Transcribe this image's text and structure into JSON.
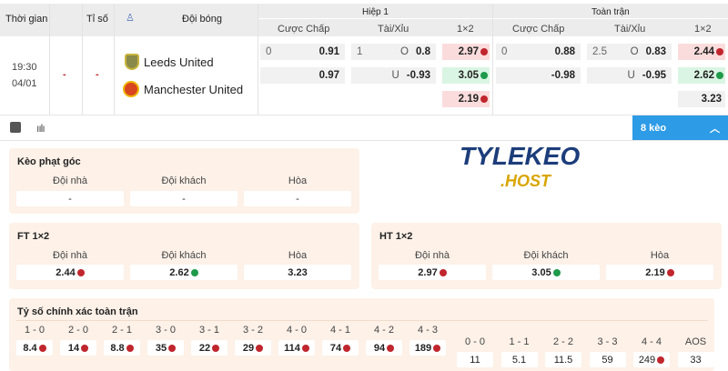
{
  "header": {
    "time": "Thời gian",
    "score": "Tỉ số",
    "teams": "Đội bóng",
    "half1": "Hiệp 1",
    "full": "Toàn trận",
    "handicap": "Cược Chấp",
    "ou": "Tài/Xỉu",
    "x12": "1×2"
  },
  "match": {
    "time": "19:30",
    "date": "04/01",
    "score1": "-",
    "score2": "-",
    "home": "Leeds United",
    "away": "Manchester United"
  },
  "h1": {
    "hdp_line": "0",
    "hdp_home": "0.91",
    "hdp_away": "0.97",
    "ou_line": "1",
    "ou_o": "O",
    "ou_over": "0.8",
    "ou_u": "U",
    "ou_under": "-0.93",
    "x_home": "2.97",
    "x_away": "3.05",
    "x_draw": "2.19"
  },
  "ft": {
    "hdp_line": "0",
    "hdp_home": "0.88",
    "hdp_away": "-0.98",
    "ou_line": "2.5",
    "ou_o": "O",
    "ou_over": "0.83",
    "ou_u": "U",
    "ou_under": "-0.95",
    "x_home": "2.44",
    "x_away": "2.62",
    "x_draw": "3.23"
  },
  "more_button": "8 kèo",
  "watermark": "TYLEKEO .HOST",
  "corner": {
    "title": "Kèo phạt góc",
    "labels": [
      "Đội nhà",
      "Đội khách",
      "Hòa"
    ],
    "values": [
      "-",
      "-",
      "-"
    ]
  },
  "ft12": {
    "title": "FT 1×2",
    "labels": [
      "Đội nhà",
      "Đội khách",
      "Hòa"
    ],
    "values": [
      "2.44",
      "2.62",
      "3.23"
    ]
  },
  "ht12": {
    "title": "HT 1×2",
    "labels": [
      "Đội nhà",
      "Đội khách",
      "Hòa"
    ],
    "values": [
      "2.97",
      "3.05",
      "2.19"
    ]
  },
  "correct": {
    "title": "Tỷ số chính xác toàn trận",
    "home": [
      {
        "s": "1 - 0",
        "v": "8.4"
      },
      {
        "s": "2 - 0",
        "v": "14"
      },
      {
        "s": "2 - 1",
        "v": "8.8"
      },
      {
        "s": "3 - 0",
        "v": "35"
      },
      {
        "s": "3 - 1",
        "v": "22"
      },
      {
        "s": "3 - 2",
        "v": "29"
      },
      {
        "s": "4 - 0",
        "v": "114"
      },
      {
        "s": "4 - 1",
        "v": "74"
      },
      {
        "s": "4 - 2",
        "v": "94"
      },
      {
        "s": "4 - 3",
        "v": "189"
      }
    ],
    "draw": [
      {
        "s": "0 - 0",
        "v": "11"
      },
      {
        "s": "1 - 1",
        "v": "5.1"
      },
      {
        "s": "2 - 2",
        "v": "11.5"
      },
      {
        "s": "3 - 3",
        "v": "59"
      },
      {
        "s": "4 - 4",
        "v": "249"
      },
      {
        "s": "AOS",
        "v": "33"
      }
    ]
  },
  "colors": {
    "accent": "#2d9be6",
    "down": "#c0262d",
    "up": "#1f9a4b",
    "section_bg": "#fdf1e8"
  }
}
